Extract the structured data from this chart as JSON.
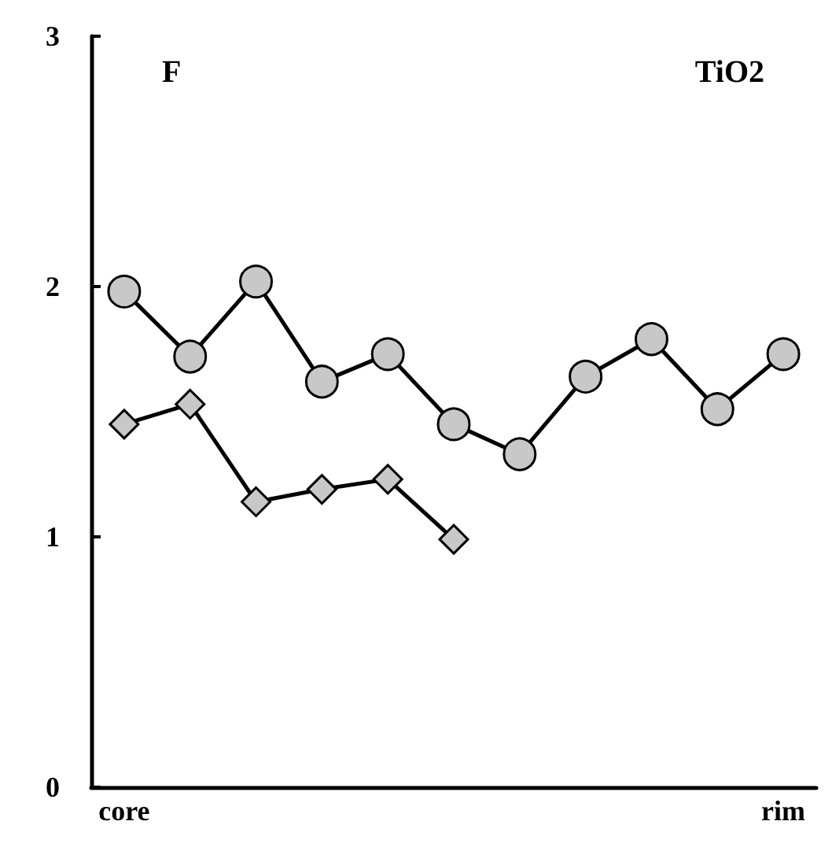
{
  "chart_data": {
    "type": "line",
    "categories": [
      "core",
      null,
      null,
      null,
      null,
      null,
      null,
      null,
      null,
      null,
      "rim"
    ],
    "series": [
      {
        "color": "#c8c8c8",
        "marker": "circle",
        "values": [
          1.98,
          1.72,
          2.02,
          1.62,
          1.73,
          1.45,
          1.33,
          1.64,
          1.79,
          1.51,
          1.73
        ]
      },
      {
        "color": "#c8c8c8",
        "marker": "diamond",
        "values": [
          1.45,
          1.53,
          1.14,
          1.19,
          1.23,
          0.99,
          null,
          null,
          null,
          null,
          null
        ]
      }
    ],
    "ylim": [
      0,
      3
    ],
    "yticks": [
      0,
      1,
      2,
      3
    ],
    "grid": false,
    "line_style": "solid",
    "annotations": [
      "F",
      "TiO2"
    ]
  }
}
